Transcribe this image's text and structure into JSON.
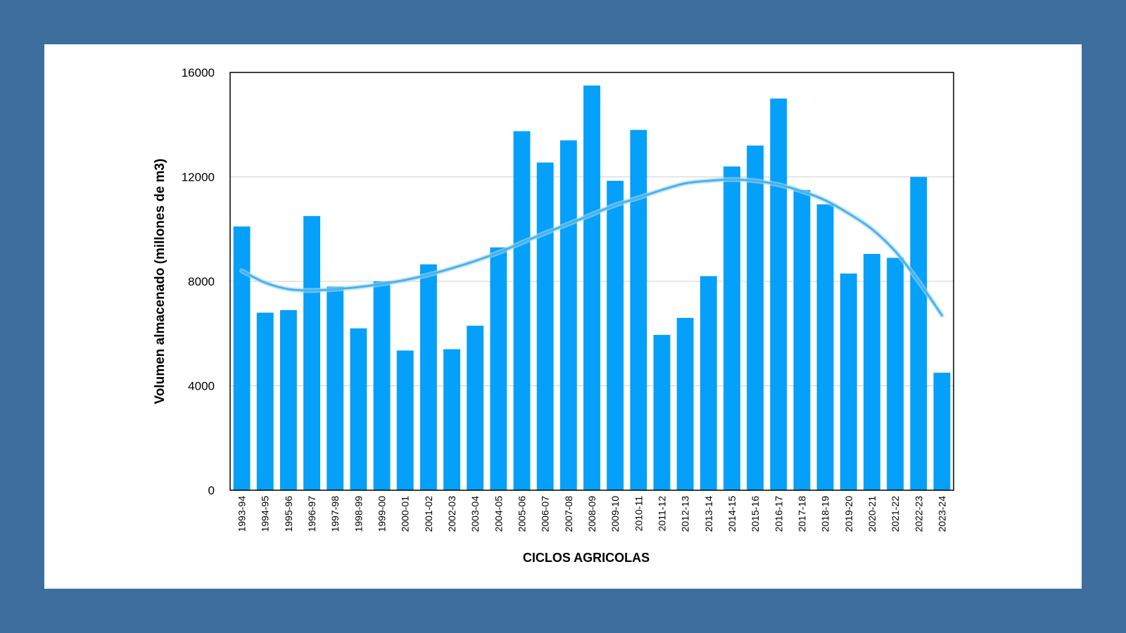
{
  "colors": {
    "frame": "#3d6e9e",
    "card": "#ffffff",
    "bar": "#05a0fa",
    "trend": "#4ab2ec",
    "grid": "#d0d0d0",
    "axis": "#000000"
  },
  "chart_data": {
    "type": "bar",
    "title": "",
    "xlabel": "CICLOS AGRICOLAS",
    "ylabel": "Volumen almacenado (millones de m3)",
    "ylim": [
      0,
      16000
    ],
    "yticks": [
      0,
      4000,
      8000,
      12000,
      16000
    ],
    "grid": true,
    "legend": "none",
    "categories": [
      "1993-94",
      "1994-95",
      "1995-96",
      "1996-97",
      "1997-98",
      "1998-99",
      "1999-00",
      "2000-01",
      "2001-02",
      "2002-03",
      "2003-04",
      "2004-05",
      "2005-06",
      "2006-07",
      "2007-08",
      "2008-09",
      "2009-10",
      "2010-11",
      "2011-12",
      "2012-13",
      "2013-14",
      "2014-15",
      "2015-16",
      "2016-17",
      "2017-18",
      "2018-19",
      "2019-20",
      "2020-21",
      "2021-22",
      "2022-23",
      "2023-24"
    ],
    "values": [
      10100,
      6800,
      6900,
      10500,
      7800,
      6200,
      8000,
      5350,
      8650,
      5400,
      6300,
      9300,
      13750,
      12550,
      13400,
      15500,
      11850,
      13800,
      5950,
      6600,
      8200,
      12400,
      13200,
      15000,
      11500,
      10950,
      8300,
      9050,
      8900,
      12000,
      4500
    ],
    "trendline": {
      "type": "polynomial",
      "values": [
        8400,
        7950,
        7700,
        7650,
        7700,
        7780,
        7900,
        8050,
        8250,
        8500,
        8780,
        9100,
        9480,
        9850,
        10200,
        10560,
        10920,
        11200,
        11500,
        11750,
        11850,
        11900,
        11850,
        11700,
        11450,
        11100,
        10600,
        10000,
        9150,
        8000,
        6700
      ]
    }
  }
}
